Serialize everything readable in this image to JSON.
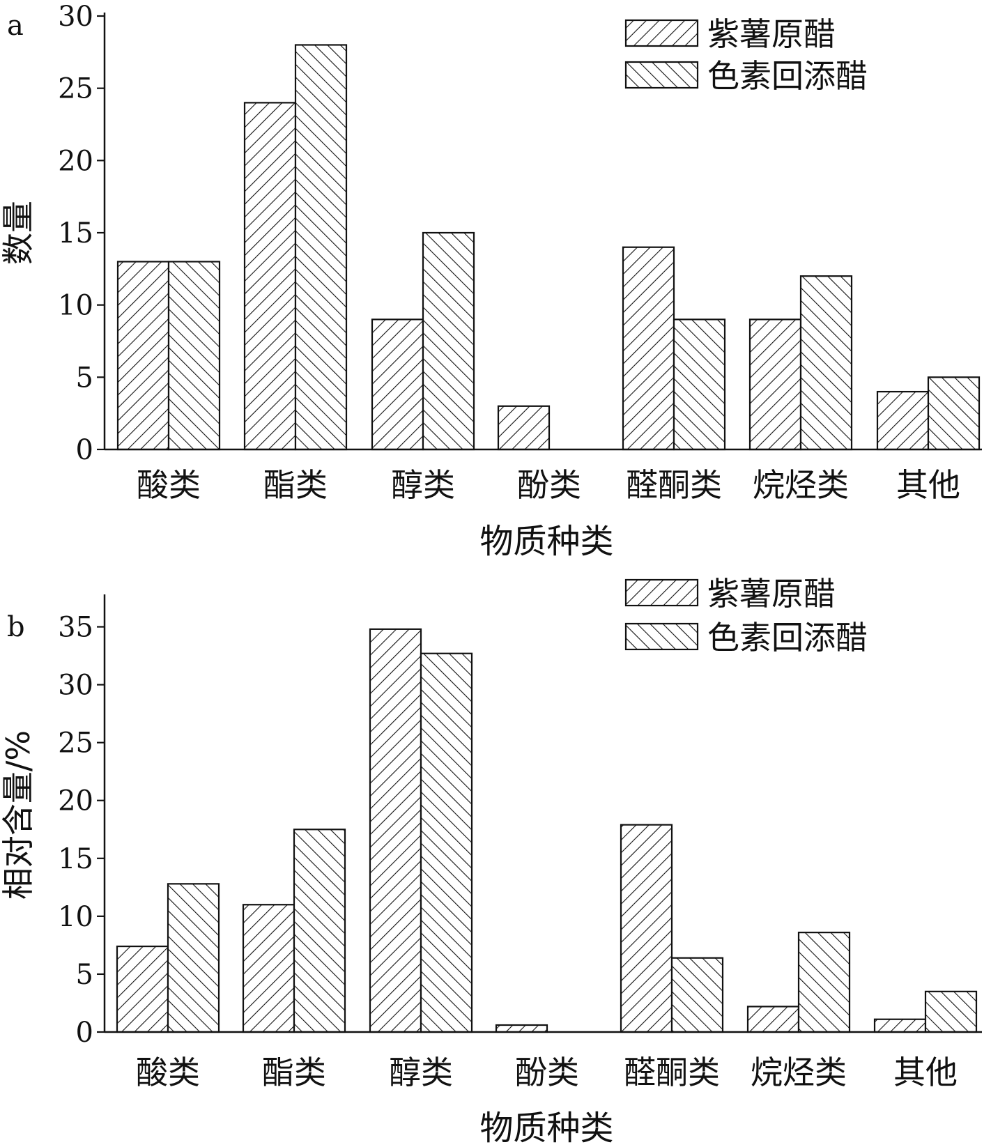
{
  "chart_data": [
    {
      "type": "bar",
      "panel": "a",
      "categories": [
        "酸类",
        "酯类",
        "醇类",
        "酚类",
        "醛酮类",
        "烷烃类",
        "其他"
      ],
      "series": [
        {
          "name": "紫薯原醋",
          "values": [
            13,
            24,
            9,
            3,
            14,
            9,
            4
          ]
        },
        {
          "name": "色素回添醋",
          "values": [
            13,
            28,
            15,
            0,
            9,
            12,
            5
          ]
        }
      ],
      "xlabel": "物质种类",
      "ylabel": "数量",
      "ylim": [
        0,
        30
      ],
      "yticks": [
        0,
        5,
        10,
        15,
        20,
        25,
        30
      ],
      "legend_position": "top-right",
      "grid": false
    },
    {
      "type": "bar",
      "panel": "b",
      "categories": [
        "酸类",
        "酯类",
        "醇类",
        "酚类",
        "醛酮类",
        "烷烃类",
        "其他"
      ],
      "series": [
        {
          "name": "紫薯原醋",
          "values": [
            7.4,
            11,
            34.8,
            0.6,
            17.9,
            2.2,
            1.1
          ]
        },
        {
          "name": "色素回添醋",
          "values": [
            12.8,
            17.5,
            32.7,
            0,
            6.4,
            8.6,
            3.5
          ]
        }
      ],
      "xlabel": "物质种类",
      "ylabel": "相对含量/%",
      "ylim": [
        0,
        37.5
      ],
      "yticks": [
        0,
        5,
        10,
        15,
        20,
        25,
        30,
        35
      ],
      "legend_position": "top-right",
      "grid": false
    }
  ],
  "colors": {
    "ink": "#111111",
    "background": "#ffffff"
  },
  "patterns": [
    "hatch-backslash",
    "hatch-forward-slash"
  ]
}
